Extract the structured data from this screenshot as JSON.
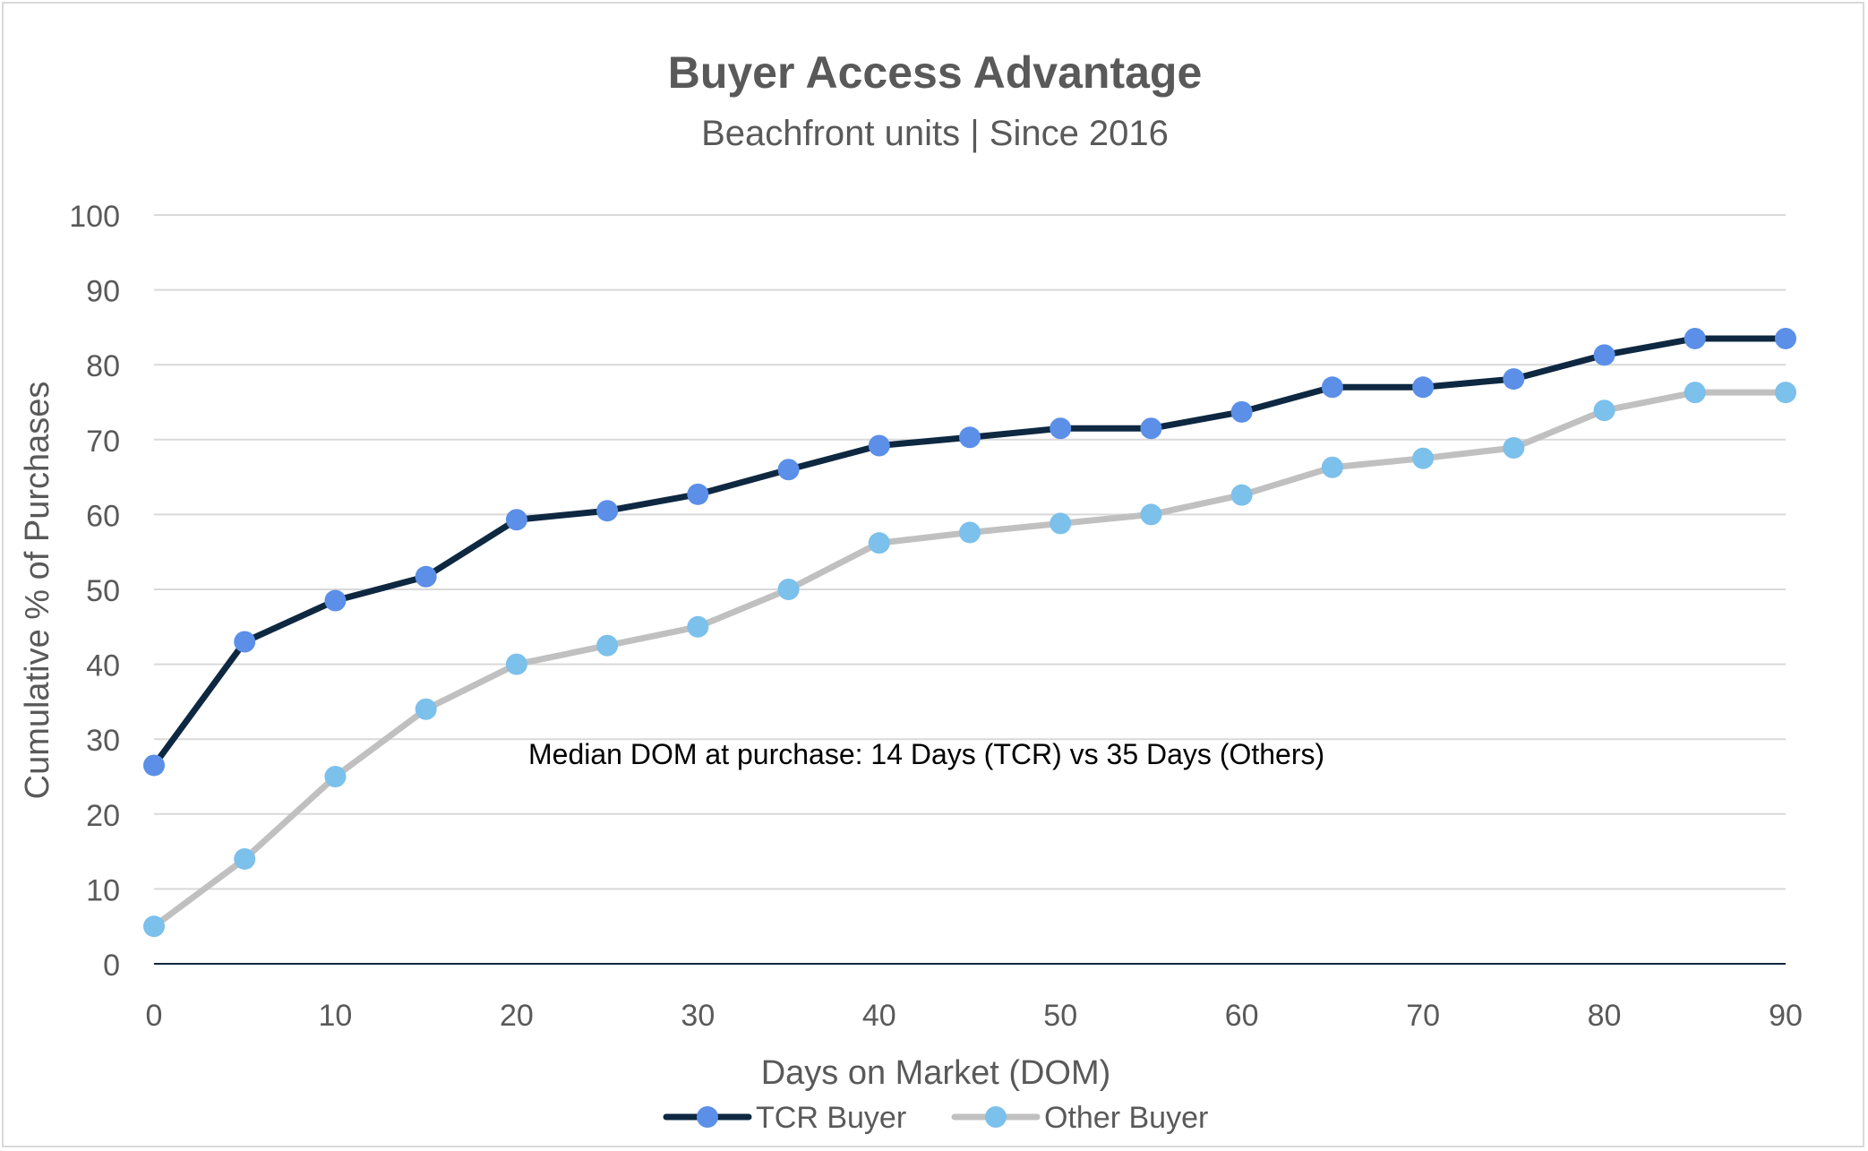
{
  "chart_data": {
    "type": "line",
    "title": "Buyer Access Advantage",
    "subtitle": "Beachfront units | Since 2016",
    "xlabel": "Days on Market (DOM)",
    "ylabel": "Cumulative % of Purchases",
    "xlim": [
      0,
      90
    ],
    "ylim": [
      0,
      100
    ],
    "x_ticks": [
      0,
      10,
      20,
      30,
      40,
      50,
      60,
      70,
      80,
      90
    ],
    "y_ticks": [
      0,
      10,
      20,
      30,
      40,
      50,
      60,
      70,
      80,
      90,
      100
    ],
    "grid": true,
    "legend_position": "bottom",
    "x": [
      0,
      5,
      10,
      15,
      20,
      25,
      30,
      35,
      40,
      45,
      50,
      55,
      60,
      65,
      70,
      75,
      80,
      85,
      90
    ],
    "series": [
      {
        "name": "TCR Buyer",
        "line_color": "#0e2841",
        "marker_color": "#5b8fe8",
        "values": [
          26.5,
          43,
          48.5,
          51.7,
          59.3,
          60.5,
          62.7,
          66,
          69.2,
          70.3,
          71.5,
          71.5,
          73.7,
          77,
          77,
          78.1,
          81.3,
          83.5,
          83.5
        ]
      },
      {
        "name": "Other Buyer",
        "line_color": "#c0c0c0",
        "marker_color": "#7cc0ec",
        "values": [
          5,
          14,
          25,
          34,
          40,
          42.5,
          45,
          50,
          56.2,
          57.6,
          58.8,
          60,
          62.6,
          66.3,
          67.5,
          68.9,
          73.9,
          76.3,
          76.3
        ]
      }
    ],
    "annotation": {
      "text": "Median DOM at purchase: 14 Days (TCR) vs 35 Days (Others)"
    }
  }
}
